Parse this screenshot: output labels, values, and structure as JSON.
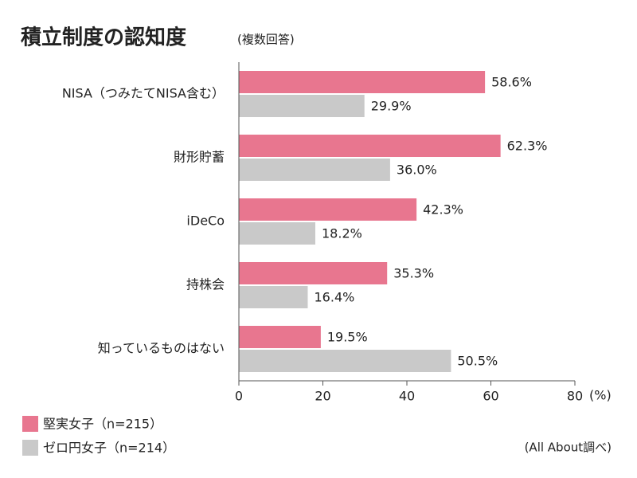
{
  "chart_data": {
    "type": "bar",
    "orientation": "horizontal",
    "title": "積立制度の認知度",
    "subtitle": "(複数回答)",
    "categories": [
      "NISA（つみたてNISA含む）",
      "財形貯蓄",
      "iDeCo",
      "持株会",
      "知っているものはない"
    ],
    "series": [
      {
        "name": "堅実女子（n=215）",
        "color": "#e8768f",
        "values": [
          58.6,
          62.3,
          42.3,
          35.3,
          19.5
        ],
        "value_labels": [
          "58.6%",
          "62.3%",
          "42.3%",
          "35.3%",
          "19.5%"
        ]
      },
      {
        "name": "ゼロ円女子（n=214）",
        "color": "#c9c9c9",
        "values": [
          29.9,
          36.0,
          18.2,
          16.4,
          50.5
        ],
        "value_labels": [
          "29.9%",
          "36.0%",
          "18.2%",
          "16.4%",
          "50.5%"
        ]
      }
    ],
    "xlim": [
      0,
      80
    ],
    "xticks": [
      0,
      20,
      40,
      60,
      80
    ],
    "xlabel": "(%)",
    "source": "(All About調べ)"
  }
}
